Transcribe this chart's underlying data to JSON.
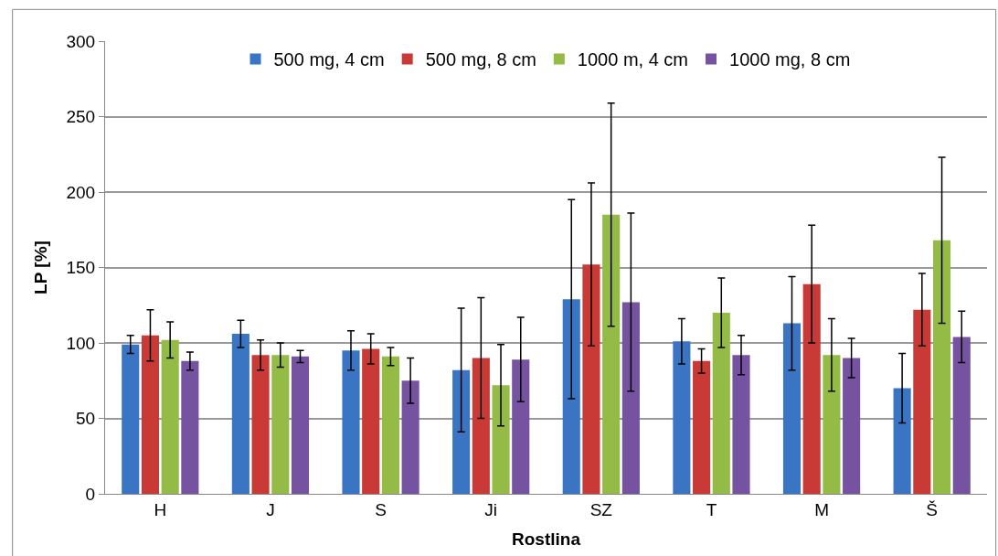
{
  "chart_data": {
    "type": "bar",
    "xlabel": "Rostlina",
    "ylabel": "LP [%]",
    "categories": [
      "H",
      "J",
      "S",
      "Ji",
      "SZ",
      "T",
      "M",
      "Š"
    ],
    "series": [
      {
        "name": "500 mg, 4 cm",
        "color": "#3a75c4",
        "values": [
          99,
          106,
          95,
          82,
          129,
          101,
          113,
          70
        ],
        "errors": [
          6,
          9,
          13,
          41,
          66,
          15,
          31,
          23
        ]
      },
      {
        "name": "500 mg, 8 cm",
        "color": "#c93a36",
        "values": [
          105,
          92,
          96,
          90,
          152,
          88,
          139,
          122
        ],
        "errors": [
          17,
          10,
          10,
          40,
          54,
          8,
          39,
          24
        ]
      },
      {
        "name": "1000 m, 4 cm",
        "color": "#93bb46",
        "values": [
          102,
          92,
          91,
          72,
          185,
          120,
          92,
          168
        ],
        "errors": [
          12,
          8,
          6,
          27,
          74,
          23,
          24,
          55
        ]
      },
      {
        "name": "1000 mg, 8 cm",
        "color": "#7553a0",
        "values": [
          88,
          91,
          75,
          89,
          127,
          92,
          90,
          104
        ],
        "errors": [
          6,
          4,
          15,
          28,
          59,
          13,
          13,
          17
        ]
      }
    ],
    "ylim": [
      0,
      300
    ],
    "yticks": [
      0,
      50,
      100,
      150,
      200,
      250,
      300
    ],
    "grid": "y",
    "legend": "top"
  }
}
